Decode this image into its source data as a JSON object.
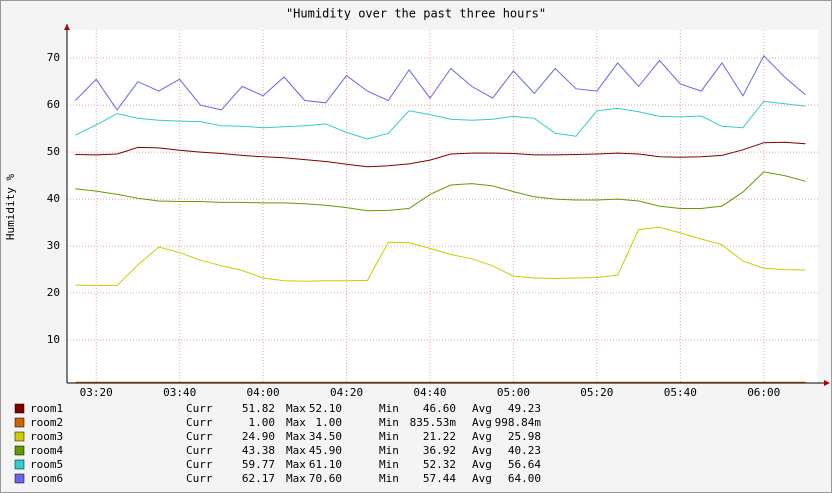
{
  "chart_data": {
    "type": "line",
    "title": "\"Humidity over the past three hours\"",
    "y_label": "Humidity %",
    "xlim": [
      "03:13",
      "06:13"
    ],
    "xticks": [
      "03:20",
      "03:40",
      "04:00",
      "04:20",
      "04:40",
      "05:00",
      "05:20",
      "05:40",
      "06:00"
    ],
    "ylim": [
      0.85,
      76
    ],
    "yticks": [
      10,
      20,
      30,
      40,
      50,
      60,
      70
    ],
    "grid": true,
    "stat_labels": [
      "Curr",
      "Max",
      "Min",
      "Avg"
    ],
    "x": [
      "03:15",
      "03:20",
      "03:25",
      "03:30",
      "03:35",
      "03:40",
      "03:45",
      "03:50",
      "03:55",
      "04:00",
      "04:05",
      "04:10",
      "04:15",
      "04:20",
      "04:25",
      "04:30",
      "04:35",
      "04:40",
      "04:45",
      "04:50",
      "04:55",
      "05:00",
      "05:05",
      "05:10",
      "05:15",
      "05:20",
      "05:25",
      "05:30",
      "05:35",
      "05:40",
      "05:45",
      "05:50",
      "05:55",
      "06:00",
      "06:05",
      "06:10"
    ],
    "series": [
      {
        "name": "room1",
        "color": "#800000",
        "stats": [
          "51.82",
          "52.10",
          "46.60",
          "49.23"
        ],
        "values": [
          49.5,
          49.4,
          49.6,
          51,
          50.9,
          50.4,
          50,
          49.7,
          49.3,
          49,
          48.8,
          48.4,
          48,
          47.4,
          46.9,
          47.1,
          47.5,
          48.3,
          49.6,
          49.8,
          49.8,
          49.7,
          49.4,
          49.4,
          49.5,
          49.6,
          49.8,
          49.6,
          49,
          48.9,
          49,
          49.3,
          50.5,
          52,
          52.1,
          51.8
        ]
      },
      {
        "name": "room2",
        "color": "#cc6600",
        "stats": [
          "1.00",
          "1.00",
          "835.53m",
          "998.84m"
        ],
        "values": [
          1,
          1,
          1,
          1,
          1,
          1,
          1,
          1,
          1,
          1,
          1,
          1,
          1,
          1,
          1,
          1,
          1,
          1,
          1,
          1,
          1,
          1,
          1,
          1,
          1,
          1,
          1,
          1,
          1,
          1,
          1,
          1,
          1,
          1,
          1,
          1
        ]
      },
      {
        "name": "room3",
        "color": "#cccc00",
        "stats": [
          "24.90",
          "34.50",
          "21.22",
          "25.98"
        ],
        "values": [
          21.7,
          21.6,
          21.6,
          26,
          29.8,
          28.6,
          27,
          25.8,
          24.8,
          23.2,
          22.6,
          22.5,
          22.6,
          22.6,
          22.7,
          30.8,
          30.7,
          29.5,
          28.2,
          27.3,
          25.8,
          23.6,
          23.2,
          23.1,
          23.2,
          23.3,
          23.8,
          33.5,
          34,
          32.8,
          31.5,
          30.3,
          26.8,
          25.3,
          25,
          24.9
        ]
      },
      {
        "name": "room4",
        "color": "#669900",
        "stats": [
          "43.38",
          "45.90",
          "36.92",
          "40.23"
        ],
        "values": [
          42.2,
          41.7,
          41,
          40.2,
          39.6,
          39.5,
          39.5,
          39.3,
          39.3,
          39.2,
          39.2,
          39,
          38.7,
          38.2,
          37.5,
          37.6,
          38,
          41,
          43,
          43.3,
          42.8,
          41.6,
          40.5,
          40,
          39.8,
          39.8,
          40,
          39.6,
          38.5,
          38,
          38,
          38.5,
          41.5,
          45.8,
          45,
          43.8
        ]
      },
      {
        "name": "room5",
        "color": "#33cccc",
        "stats": [
          "59.77",
          "61.10",
          "52.32",
          "56.64"
        ],
        "values": [
          53.6,
          55.8,
          58.2,
          57.2,
          56.8,
          56.6,
          56.5,
          55.6,
          55.5,
          55.2,
          55.4,
          55.6,
          56,
          54.2,
          52.8,
          54,
          58.8,
          58,
          57,
          56.8,
          57,
          57.6,
          57.2,
          54,
          53.4,
          58.8,
          59.3,
          58.6,
          57.6,
          57.5,
          57.7,
          55.5,
          55.2,
          60.8,
          60.3,
          59.8
        ]
      },
      {
        "name": "room6",
        "color": "#6666ee",
        "stats": [
          "62.17",
          "70.60",
          "57.44",
          "64.00"
        ],
        "values": [
          61,
          65.5,
          59,
          65,
          63,
          65.5,
          60,
          59,
          64,
          62,
          66,
          61,
          60.5,
          66.3,
          63,
          61,
          67.5,
          61.5,
          67.8,
          64,
          61.5,
          67.3,
          62.5,
          67.8,
          63.5,
          63,
          69,
          64,
          69.5,
          64.5,
          63,
          69,
          62,
          70.5,
          66,
          62.2
        ]
      }
    ]
  }
}
